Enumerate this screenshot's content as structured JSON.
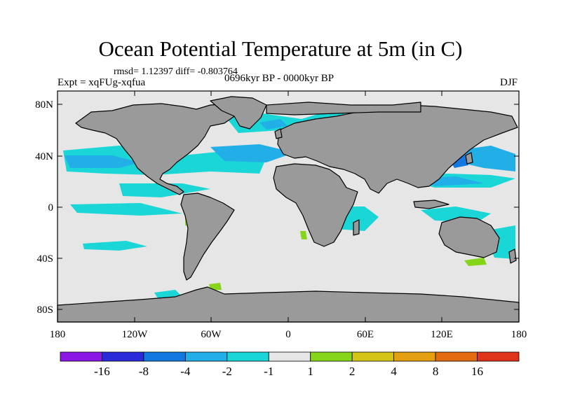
{
  "title": "Ocean Potential Temperature at 5m (in C)",
  "stats": "rmsd= 1.12397 diff= -0.803764",
  "experiment": "Expt = xqFUg-xqfua",
  "period": "0696kyr BP - 0000kyr BP",
  "season": "DJF",
  "axes": {
    "lon_ticks": [
      "180",
      "120W",
      "60W",
      "0",
      "60E",
      "120E",
      "180"
    ],
    "lat_ticks": [
      "80N",
      "40N",
      "0",
      "40S",
      "80S"
    ]
  },
  "legend": {
    "colors": [
      "#8a17e6",
      "#2a2ad8",
      "#1378e0",
      "#22aee6",
      "#1ad6d6",
      "#e6e6e6",
      "#86d51a",
      "#d4c416",
      "#e4a010",
      "#e46c10",
      "#e0341a"
    ],
    "labels": [
      "-16",
      "-8",
      "-4",
      "-2",
      "-1",
      "1",
      "2",
      "4",
      "8",
      "16"
    ]
  },
  "colors": {
    "land": "#9a9a9a",
    "background": "#e6e6e6",
    "coast": "#000000"
  }
}
